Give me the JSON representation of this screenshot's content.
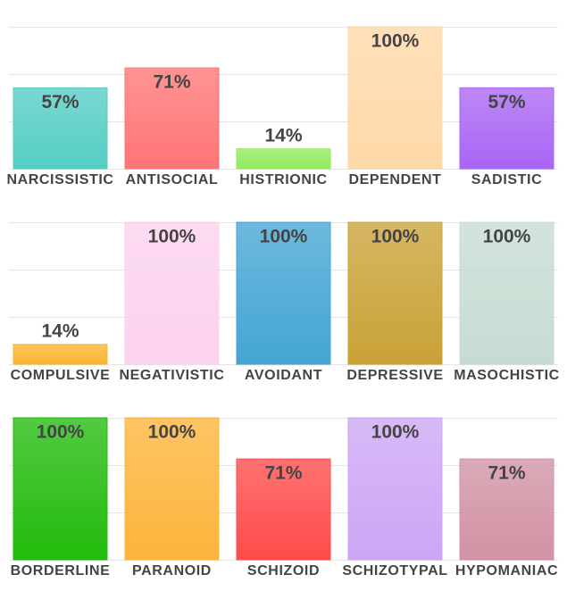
{
  "chart_data": [
    {
      "type": "bar",
      "categories": [
        "NARCISSISTIC",
        "ANTISOCIAL",
        "HISTRIONIC",
        "DEPENDENT",
        "SADISTIC"
      ],
      "values": [
        57,
        71,
        14,
        100,
        57
      ],
      "value_labels": [
        "57%",
        "71%",
        "14%",
        "100%",
        "57%"
      ],
      "colors": [
        "#55cdc4",
        "#ff7575",
        "#93ea5e",
        "#ffd8a8",
        "#a965f5"
      ],
      "ylim": [
        0,
        100
      ],
      "yticks": [
        0,
        33.3,
        66.7,
        100
      ],
      "grid": true
    },
    {
      "type": "bar",
      "categories": [
        "COMPULSIVE",
        "NEGATIVISTIC",
        "AVOIDANT",
        "DEPRESSIVE",
        "MASOCHISTIC"
      ],
      "values": [
        14,
        100,
        100,
        100,
        100
      ],
      "value_labels": [
        "14%",
        "100%",
        "100%",
        "100%",
        "100%"
      ],
      "colors": [
        "#fbb52e",
        "#fcd2ef",
        "#44a5d4",
        "#c9a236",
        "#c6dcd2"
      ],
      "ylim": [
        0,
        100
      ],
      "yticks": [
        0,
        33.3,
        66.7,
        100
      ],
      "grid": true
    },
    {
      "type": "bar",
      "categories": [
        "BORDERLINE",
        "PARANOID",
        "SCHIZOID",
        "SCHIZOTYPAL",
        "HYPOMANIAC"
      ],
      "values": [
        100,
        100,
        71,
        100,
        71
      ],
      "value_labels": [
        "100%",
        "100%",
        "71%",
        "100%",
        "71%"
      ],
      "colors": [
        "#22bb0c",
        "#fdb43a",
        "#ff4a4a",
        "#cca6f5",
        "#d192a4"
      ],
      "ylim": [
        0,
        100
      ],
      "yticks": [
        0,
        33.3,
        66.7,
        100
      ],
      "grid": true
    }
  ]
}
